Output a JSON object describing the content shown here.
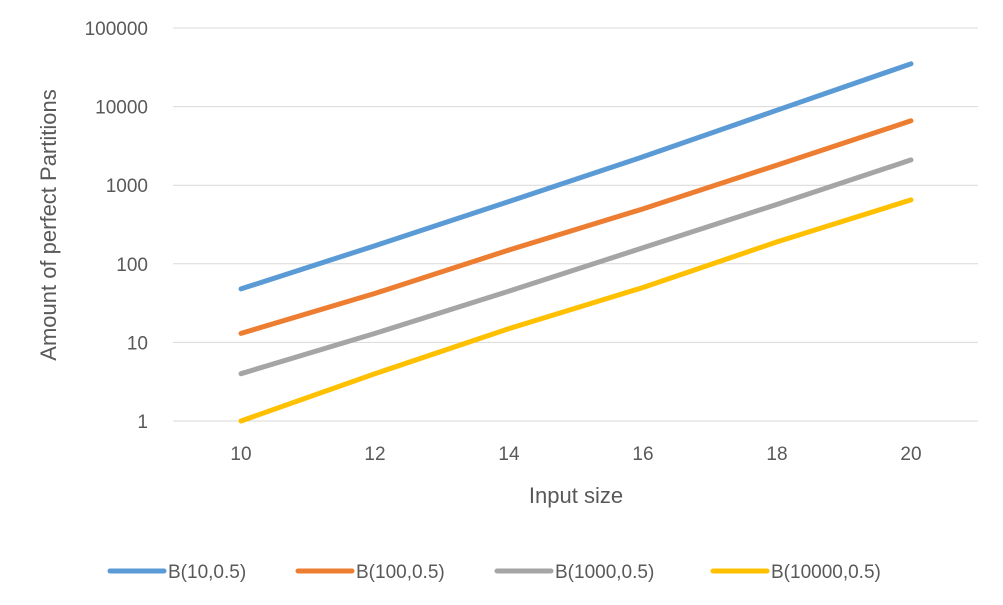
{
  "chart_data": {
    "type": "line",
    "xlabel": "Input size",
    "ylabel": "Amount of perfect Partitions",
    "x_ticks": [
      10,
      12,
      14,
      16,
      18,
      20
    ],
    "y_scale": "log",
    "y_ticks": [
      1,
      10,
      100,
      1000,
      10000,
      100000
    ],
    "y_tick_labels": [
      "1",
      "10",
      "100",
      "1000",
      "10000",
      "100000"
    ],
    "xlim": [
      9.5,
      20.5
    ],
    "ylim": [
      1,
      100000
    ],
    "grid": "horizontal",
    "legend_position": "bottom",
    "series": [
      {
        "name": "B(10,0.5)",
        "color": "#5b9bd5",
        "x": [
          10,
          12,
          14,
          16,
          18,
          20
        ],
        "y": [
          48,
          170,
          620,
          2300,
          9000,
          35000
        ]
      },
      {
        "name": "B(100,0.5)",
        "color": "#ed7d31",
        "x": [
          10,
          12,
          14,
          16,
          18,
          20
        ],
        "y": [
          13,
          42,
          150,
          500,
          1800,
          6600
        ]
      },
      {
        "name": "B(1000,0.5)",
        "color": "#a5a5a5",
        "x": [
          10,
          12,
          14,
          16,
          18,
          20
        ],
        "y": [
          4,
          13,
          45,
          160,
          570,
          2100
        ]
      },
      {
        "name": "B(10000,0.5)",
        "color": "#ffc000",
        "x": [
          10,
          12,
          14,
          16,
          18,
          20
        ],
        "y": [
          1,
          4,
          15,
          50,
          190,
          650
        ]
      }
    ]
  }
}
